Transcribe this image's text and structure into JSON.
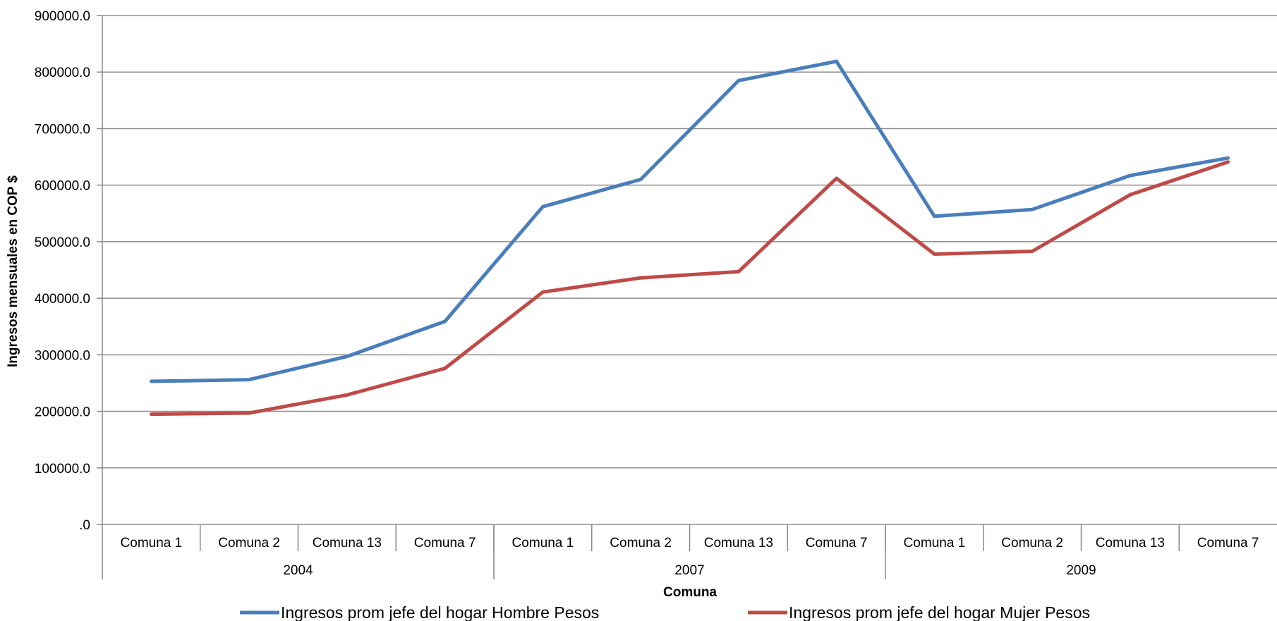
{
  "chart_data": {
    "type": "line",
    "categories": [
      "Comuna 1",
      "Comuna 2",
      "Comuna 13",
      "Comuna 7",
      "Comuna 1",
      "Comuna 2",
      "Comuna 13",
      "Comuna 7",
      "Comuna 1",
      "Comuna 2",
      "Comuna 13",
      "Comuna 7"
    ],
    "groups": [
      {
        "label": "2004",
        "count": 4
      },
      {
        "label": "2007",
        "count": 4
      },
      {
        "label": "2009",
        "count": 4
      }
    ],
    "series": [
      {
        "name": "Ingresos prom jefe del hogar Hombre Pesos",
        "color": "#4a7ebb",
        "values": [
          253000,
          256000,
          297000,
          359000,
          562000,
          610000,
          785000,
          819000,
          545000,
          557000,
          617000,
          648000
        ]
      },
      {
        "name": "Ingresos prom jefe del hogar Mujer Pesos",
        "color": "#be4b48",
        "values": [
          195000,
          197000,
          229000,
          276000,
          411000,
          436000,
          447000,
          612000,
          478000,
          483000,
          583000,
          641000
        ]
      }
    ],
    "y_ticks": [
      "900000.0",
      "800000.0",
      "700000.0",
      "600000.0",
      "500000.0",
      "400000.0",
      "300000.0",
      "200000.0",
      "100000.0",
      ".0"
    ],
    "ylim": [
      0,
      900000
    ],
    "xlabel": "Comuna",
    "ylabel": "Ingresos mensuales en COP $",
    "grid": true,
    "legend_position": "bottom"
  }
}
